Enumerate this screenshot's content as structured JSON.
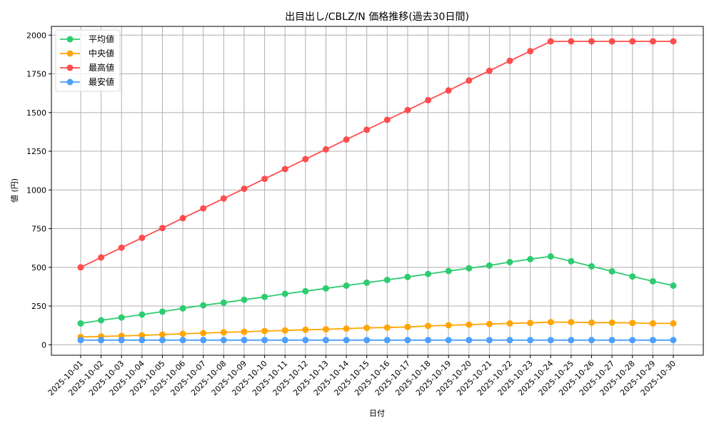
{
  "chart_data": {
    "type": "line",
    "title": "出目出し/CBLZ/N 価格推移(過去30日間)",
    "xlabel": "日付",
    "ylabel": "値 (円)",
    "ylim": [
      -65,
      2060
    ],
    "yticks": [
      0,
      250,
      500,
      750,
      1000,
      1250,
      1500,
      1750,
      2000
    ],
    "grid": true,
    "legend_position": "upper left",
    "categories": [
      "2025-10-01",
      "2025-10-02",
      "2025-10-03",
      "2025-10-04",
      "2025-10-05",
      "2025-10-06",
      "2025-10-07",
      "2025-10-08",
      "2025-10-09",
      "2025-10-10",
      "2025-10-11",
      "2025-10-12",
      "2025-10-13",
      "2025-10-14",
      "2025-10-15",
      "2025-10-16",
      "2025-10-17",
      "2025-10-18",
      "2025-10-19",
      "2025-10-20",
      "2025-10-21",
      "2025-10-22",
      "2025-10-23",
      "2025-10-24",
      "2025-10-25",
      "2025-10-26",
      "2025-10-27",
      "2025-10-28",
      "2025-10-29",
      "2025-10-30"
    ],
    "series": [
      {
        "name": "平均値",
        "color": "#2ecc71",
        "values": [
          138,
          158,
          176,
          195,
          214,
          235,
          255,
          272,
          291,
          309,
          329,
          346,
          364,
          382,
          401,
          419,
          438,
          457,
          476,
          494,
          512,
          534,
          553,
          571,
          539,
          507,
          474,
          441,
          410,
          382
        ]
      },
      {
        "name": "中央値",
        "color": "#ffa500",
        "values": [
          50,
          54,
          57,
          61,
          66,
          71,
          75,
          80,
          84,
          89,
          92,
          97,
          100,
          104,
          109,
          111,
          115,
          121,
          126,
          130,
          134,
          138,
          141,
          146,
          146,
          143,
          143,
          141,
          138,
          138
        ]
      },
      {
        "name": "最高値",
        "color": "#ff4d4d",
        "values": [
          500,
          564,
          627,
          691,
          754,
          818,
          881,
          945,
          1008,
          1072,
          1135,
          1199,
          1262,
          1326,
          1389,
          1453,
          1516,
          1580,
          1643,
          1707,
          1770,
          1834,
          1897,
          1960,
          1960,
          1960,
          1960,
          1960,
          1960,
          1960
        ]
      },
      {
        "name": "最安値",
        "color": "#4d9fff",
        "values": [
          30,
          30,
          30,
          30,
          30,
          30,
          30,
          30,
          30,
          30,
          30,
          30,
          30,
          30,
          30,
          30,
          30,
          30,
          30,
          30,
          30,
          30,
          30,
          30,
          30,
          30,
          30,
          30,
          30,
          30
        ]
      }
    ]
  }
}
